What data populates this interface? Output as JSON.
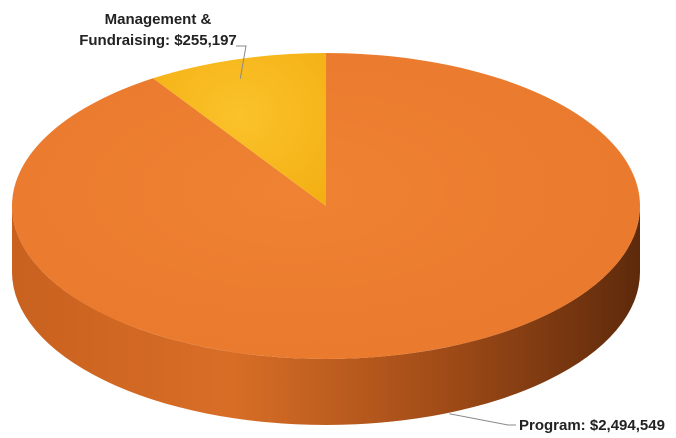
{
  "chart_data": {
    "type": "pie",
    "style": "3d",
    "title": "",
    "slices": [
      {
        "label_lines": [
          "Program: $2,494,549"
        ],
        "category": "Program",
        "value": 2494549,
        "color": "#ED7D31"
      },
      {
        "label_lines": [
          "Management &",
          "Fundraising: $255,197"
        ],
        "category": "Management & Fundraising",
        "value": 255197,
        "color": "#F7B719"
      }
    ],
    "start_angle_deg": 0,
    "direction": "clockwise-from-top",
    "legend": "none"
  }
}
